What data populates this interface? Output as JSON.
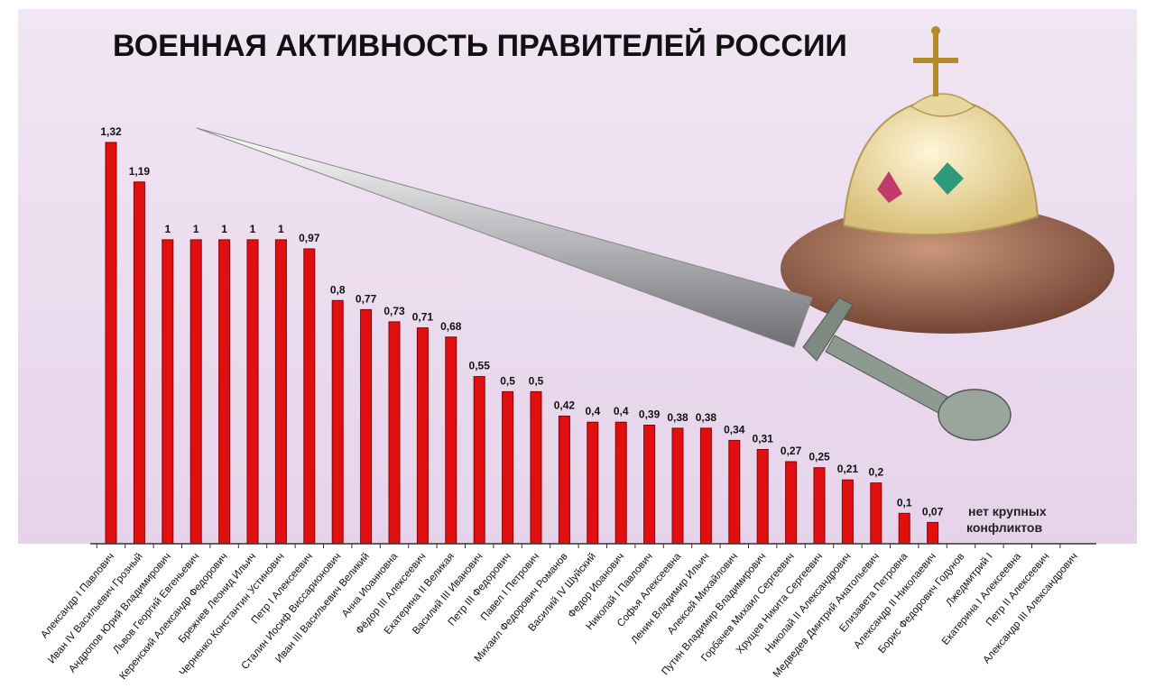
{
  "chart_data": {
    "type": "bar",
    "title": "ВОЕННАЯ АКТИВНОСТЬ ПРАВИТЕЛЕЙ РОССИИ",
    "note_lines": [
      "нет крупных",
      "конфликтов"
    ],
    "categories": [
      "Александр I Павлович",
      "Иван IV Васильевич Грозный",
      "Андропов Юрий Владимирович",
      "Львов Георгий Евгеньевич",
      "Керенский Александр Федорович",
      "Брежнев Леонид Ильич",
      "Черненко Константин Устинович",
      "Петр I Алексеевич",
      "Сталин Иосиф Виссарионович",
      "Иван III Васильевич Великий",
      "Анна Иоанновна",
      "Фёдор III Алексеевич",
      "Екатерина II Великая",
      "Василий III Иванович",
      "Петр III Федорович",
      "Павел I Петрович",
      "Михаил Федорович Романов",
      "Василий IV Шуйский",
      "Федор Иоанович",
      "Николай I Павлович",
      "Софья Алексеевна",
      "Ленин Владимир Ильич",
      "Алексей Михайлович",
      "Путин Владимир Владимирович",
      "Горбачев Михаил Сергеевич",
      "Хрущев Никита Сергеевич",
      "Николай II Александрович",
      "Медведев Дмитрий Анатольевич",
      "Елизавета Петровна",
      "Александр II Николаевич",
      "Борис Федорович Годунов",
      "Лжедмитрий I",
      "Екатерина I Алексеевна",
      "Петр II Алексеевич",
      "Александр III Александрович"
    ],
    "values": [
      1.32,
      1.19,
      1,
      1,
      1,
      1,
      1,
      0.97,
      0.8,
      0.77,
      0.73,
      0.71,
      0.68,
      0.55,
      0.5,
      0.5,
      0.42,
      0.4,
      0.4,
      0.39,
      0.38,
      0.38,
      0.34,
      0.31,
      0.27,
      0.25,
      0.21,
      0.2,
      0.1,
      0.07,
      null,
      null,
      null,
      null,
      null
    ],
    "value_labels": [
      "1,32",
      "1,19",
      "1",
      "1",
      "1",
      "1",
      "1",
      "0,97",
      "0,8",
      "0,77",
      "0,73",
      "0,71",
      "0,68",
      "0,55",
      "0,5",
      "0,5",
      "0,42",
      "0,4",
      "0,4",
      "0,39",
      "0,38",
      "0,38",
      "0,34",
      "0,31",
      "0,27",
      "0,25",
      "0,21",
      "0,2",
      "0,1",
      "0,07",
      "",
      "",
      "",
      "",
      ""
    ],
    "ylim": [
      0,
      1.32
    ],
    "grid": false,
    "legend": "none",
    "colors": {
      "bar": "#e01010",
      "bar_shade": "#8a0000",
      "background": "#ecdcef",
      "axis": "#333333"
    }
  }
}
